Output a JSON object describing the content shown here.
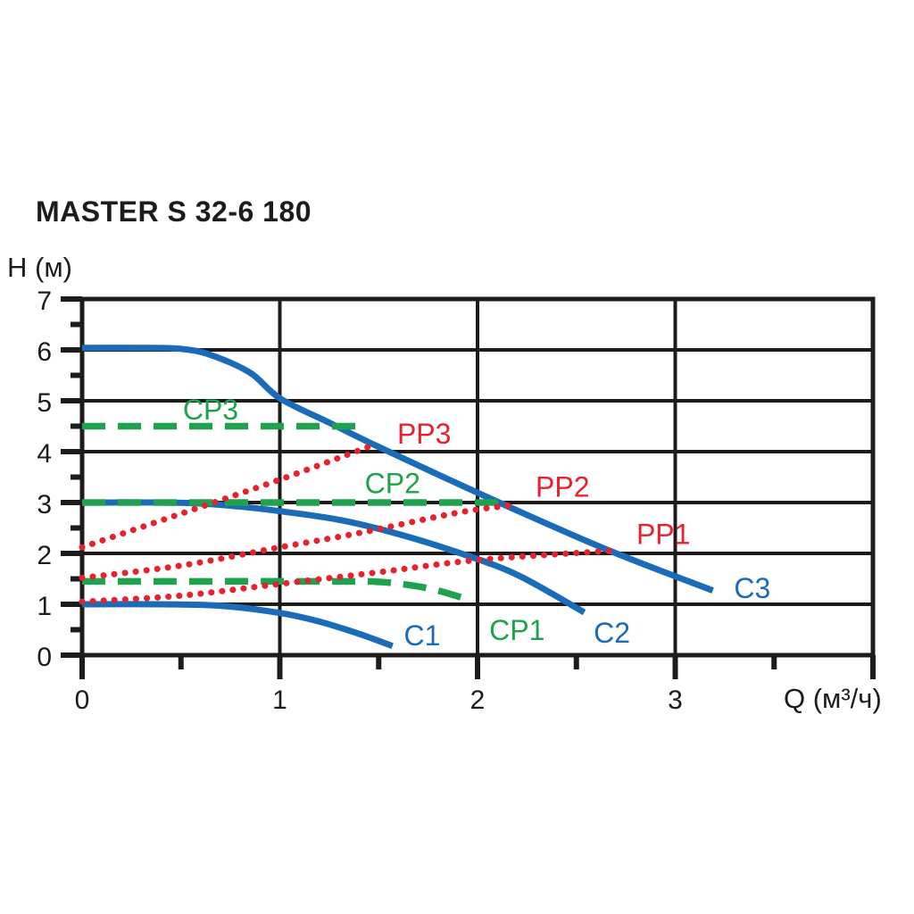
{
  "header": {
    "title": "MASTER S 32-6 180"
  },
  "chart_data": {
    "type": "line",
    "title": "MASTER S 32-6 180",
    "xlabel": "Q (м³/ч)",
    "ylabel": "H (м)",
    "xlim": [
      0,
      4
    ],
    "ylim": [
      0,
      7
    ],
    "grid": {
      "x": [
        1,
        2,
        3
      ],
      "y": [
        1,
        2,
        3,
        4,
        5,
        6
      ]
    },
    "x_ticks_labeled": [
      0,
      1,
      2,
      3
    ],
    "x_ticks_unlabeled": [
      4
    ],
    "x_ticks_minor": [
      0.5,
      1.5,
      2.5,
      3.5
    ],
    "y_ticks_labeled": [
      0,
      1,
      2,
      3,
      4,
      5,
      6,
      7
    ],
    "y_ticks_minor": [
      0.5,
      1.5,
      2.5,
      3.5,
      4.5,
      5.5,
      6.5
    ],
    "ink_color": "#1d1c1a",
    "legend": "none",
    "series": [
      {
        "name": "C3",
        "description": "pump curve speed 3",
        "style": "solid",
        "color": "#1a6cb8",
        "width": 7,
        "points": [
          [
            0,
            6.04
          ],
          [
            0.3,
            6.04
          ],
          [
            0.5,
            6.02
          ],
          [
            0.65,
            5.9
          ],
          [
            0.85,
            5.55
          ],
          [
            1.0,
            5.05
          ],
          [
            1.25,
            4.57
          ],
          [
            1.48,
            4.13
          ],
          [
            1.8,
            3.55
          ],
          [
            2.15,
            2.93
          ],
          [
            2.67,
            2.05
          ],
          [
            3.19,
            1.27
          ]
        ],
        "label": {
          "text": "C3",
          "x": 3.39,
          "y": 1.12
        }
      },
      {
        "name": "C2",
        "description": "pump curve speed 2",
        "style": "solid",
        "color": "#1a6cb8",
        "width": 7,
        "points": [
          [
            0,
            3.0
          ],
          [
            0.4,
            3.0
          ],
          [
            0.6,
            2.98
          ],
          [
            0.8,
            2.92
          ],
          [
            1.0,
            2.83
          ],
          [
            1.3,
            2.66
          ],
          [
            1.6,
            2.38
          ],
          [
            1.9,
            2.02
          ],
          [
            2.2,
            1.58
          ],
          [
            2.54,
            0.84
          ]
        ],
        "label": {
          "text": "C2",
          "x": 2.68,
          "y": 0.25
        }
      },
      {
        "name": "C1",
        "description": "pump curve speed 1",
        "style": "solid",
        "color": "#1a6cb8",
        "width": 7,
        "points": [
          [
            0,
            1.0
          ],
          [
            0.4,
            1.0
          ],
          [
            0.7,
            0.97
          ],
          [
            1.0,
            0.83
          ],
          [
            1.2,
            0.66
          ],
          [
            1.4,
            0.42
          ],
          [
            1.57,
            0.18
          ]
        ],
        "label": {
          "text": "C1",
          "x": 1.72,
          "y": 0.19
        }
      },
      {
        "name": "CP3",
        "description": "constant pressure curve 3",
        "style": "dashed",
        "color": "#1fa24d",
        "width": 7.5,
        "points": [
          [
            0,
            4.5
          ],
          [
            1.4,
            4.5
          ]
        ],
        "label": {
          "text": "CP3",
          "x": 0.65,
          "y": 4.63
        }
      },
      {
        "name": "CP2",
        "description": "constant pressure curve 2",
        "style": "dashed",
        "color": "#1fa24d",
        "width": 7.5,
        "points": [
          [
            0,
            3.0
          ],
          [
            2.16,
            3.0
          ]
        ],
        "label": {
          "text": "CP2",
          "x": 1.57,
          "y": 3.18
        }
      },
      {
        "name": "CP1",
        "description": "constant pressure curve 1",
        "style": "dashed",
        "color": "#1fa24d",
        "width": 7.5,
        "points": [
          [
            0,
            1.45
          ],
          [
            1.3,
            1.45
          ],
          [
            1.5,
            1.44
          ],
          [
            1.65,
            1.38
          ],
          [
            1.8,
            1.27
          ],
          [
            1.97,
            1.07
          ]
        ],
        "label": {
          "text": "CP1",
          "x": 2.2,
          "y": 0.3
        }
      },
      {
        "name": "PP3",
        "description": "proportional pressure curve 3",
        "style": "dotted",
        "color": "#e7212e",
        "width": 7,
        "points": [
          [
            0,
            2.12
          ],
          [
            0.5,
            2.78
          ],
          [
            1.0,
            3.45
          ],
          [
            1.48,
            4.14
          ]
        ],
        "label": {
          "text": "PP3",
          "x": 1.73,
          "y": 4.16
        }
      },
      {
        "name": "PP2",
        "description": "proportional pressure curve 2",
        "style": "dotted",
        "color": "#e7212e",
        "width": 7,
        "points": [
          [
            0,
            1.52
          ],
          [
            0.5,
            1.76
          ],
          [
            1.0,
            2.12
          ],
          [
            1.4,
            2.4
          ],
          [
            1.9,
            2.8
          ],
          [
            2.16,
            2.94
          ]
        ],
        "label": {
          "text": "PP2",
          "x": 2.43,
          "y": 3.11
        }
      },
      {
        "name": "PP1",
        "description": "proportional pressure curve 1",
        "style": "dotted",
        "color": "#e7212e",
        "width": 7,
        "points": [
          [
            0,
            1.05
          ],
          [
            0.5,
            1.17
          ],
          [
            1.0,
            1.4
          ],
          [
            1.5,
            1.63
          ],
          [
            2.0,
            1.87
          ],
          [
            2.67,
            2.05
          ]
        ],
        "label": {
          "text": "PP1",
          "x": 2.94,
          "y": 2.18
        }
      }
    ]
  }
}
